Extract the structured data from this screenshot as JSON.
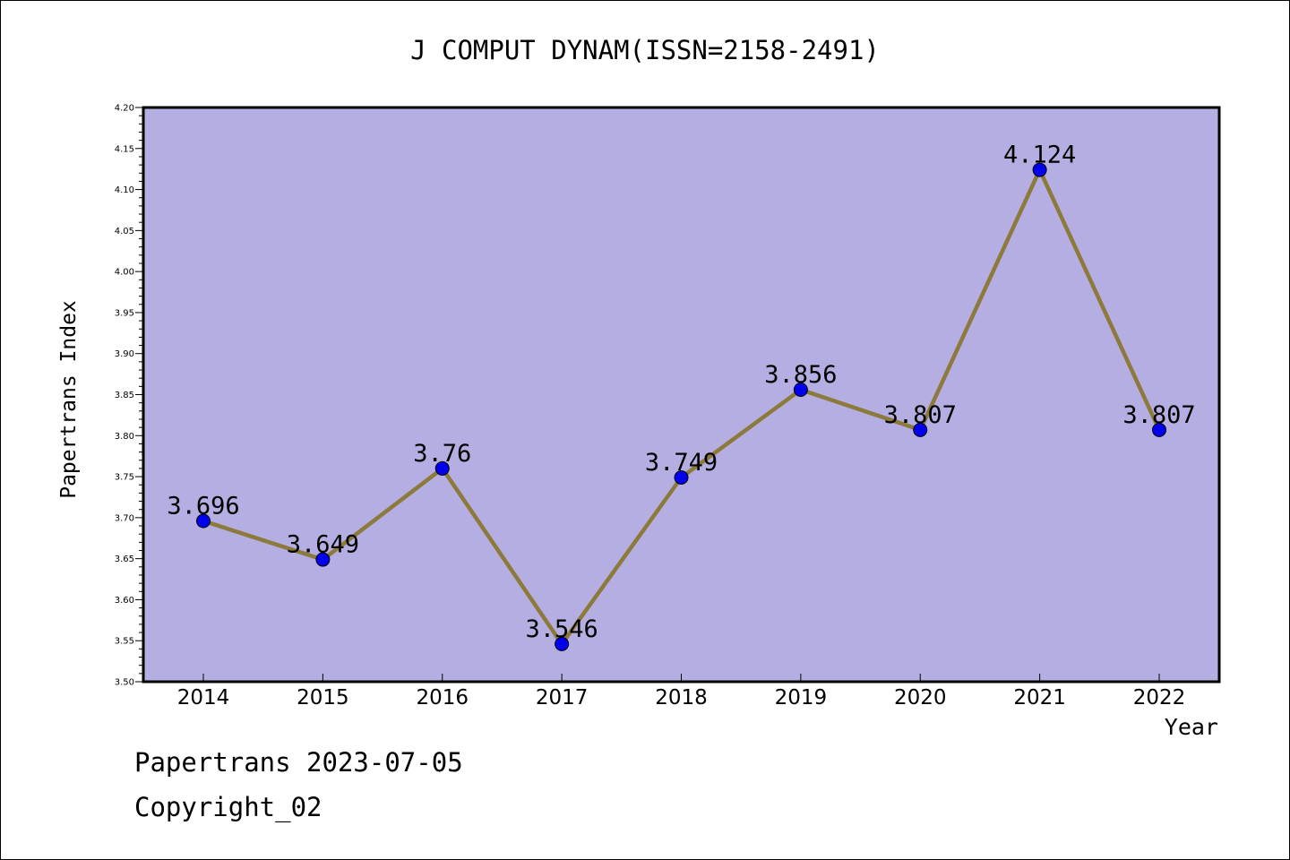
{
  "chart_data": {
    "type": "line",
    "title": "J COMPUT DYNAM(ISSN=2158-2491)",
    "xlabel": "Year",
    "ylabel": "Papertrans Index",
    "categories": [
      "2014",
      "2015",
      "2016",
      "2017",
      "2018",
      "2019",
      "2020",
      "2021",
      "2022"
    ],
    "series": [
      {
        "values": [
          3.696,
          3.649,
          3.76,
          3.546,
          3.749,
          3.856,
          3.807,
          4.124,
          3.807
        ],
        "data_labels": [
          "3.696",
          "3.649",
          "3.76",
          "3.546",
          "3.749",
          "3.856",
          "3.807",
          "4.124",
          "3.807"
        ]
      }
    ],
    "ylim": [
      3.5,
      4.2
    ],
    "yticks": [
      "3.50",
      "3.55",
      "3.60",
      "3.65",
      "3.70",
      "3.75",
      "3.80",
      "3.85",
      "3.90",
      "3.95",
      "4.00",
      "4.05",
      "4.10",
      "4.15",
      "4.20"
    ],
    "grid": false,
    "legend": "none",
    "colors": {
      "plot_background": "#b5aee2",
      "line": "#8b7a3a",
      "marker": "#0000ee",
      "axis": "#000000"
    }
  },
  "footer": {
    "line1": "Papertrans 2023-07-05",
    "line2": "Copyright_02"
  }
}
